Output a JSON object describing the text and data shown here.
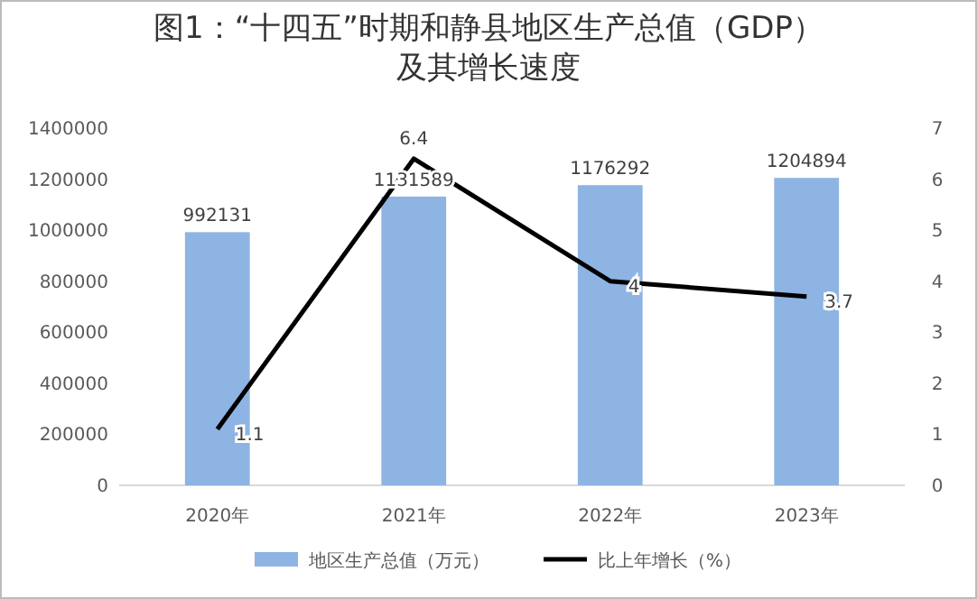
{
  "chart_data": {
    "type": "bar",
    "title": "图1：“十四五”时期和静县地区生产总值（GDP）及其增长速度",
    "categories": [
      "2020年",
      "2021年",
      "2022年",
      "2023年"
    ],
    "series": [
      {
        "name": "地区生产总值（万元）",
        "color": "#8eb4e3",
        "values": [
          992131,
          1131589,
          1176292,
          1204894
        ]
      },
      {
        "name": "比上年增长（%）",
        "color": "#000000",
        "type": "line",
        "axis": "y2",
        "values": [
          1.1,
          6.4,
          4,
          3.7
        ]
      }
    ],
    "ylim": [
      0,
      1400000
    ],
    "yticks": [
      0,
      200000,
      400000,
      600000,
      800000,
      1000000,
      1200000,
      1400000
    ],
    "y2lim": [
      0,
      7
    ],
    "y2ticks": [
      0,
      1,
      2,
      3,
      4,
      5,
      6,
      7
    ],
    "data_labels": true,
    "legend": "bottom",
    "grid": false,
    "marker": "none",
    "line_style": "solid"
  }
}
